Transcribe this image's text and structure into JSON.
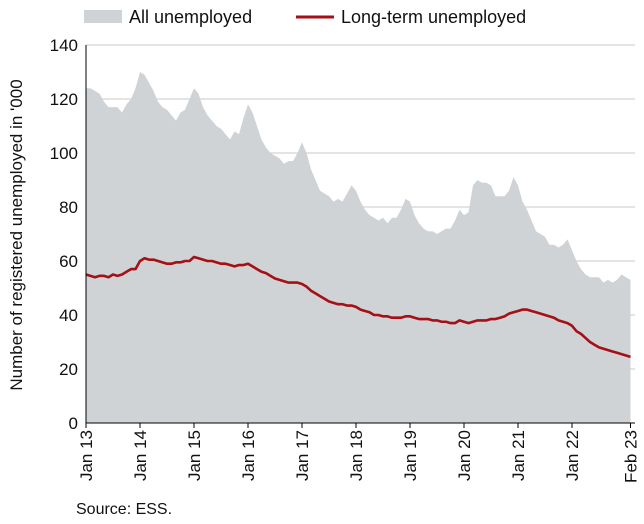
{
  "chart_data": {
    "type": "area",
    "title": "",
    "ylabel": "Number of registered unemployed in '000",
    "xlabel": "",
    "ylim": [
      0,
      140
    ],
    "yticks": [
      0,
      20,
      40,
      60,
      80,
      100,
      120,
      140
    ],
    "xticks": [
      "Jan 13",
      "Jan 14",
      "Jan 15",
      "Jan 16",
      "Jan 17",
      "Jan 18",
      "Jan 19",
      "Jan 20",
      "Jan 21",
      "Jan 22",
      "Feb 23"
    ],
    "grid": true,
    "legend_position": "top",
    "source": "Source: ESS.",
    "months_total": 122,
    "series": [
      {
        "name": "All unemployed",
        "kind": "area",
        "color": "#d0d3d6",
        "points": [
          [
            0,
            124
          ],
          [
            1,
            124
          ],
          [
            2,
            123
          ],
          [
            3,
            122
          ],
          [
            4,
            119
          ],
          [
            5,
            117
          ],
          [
            6,
            117
          ],
          [
            7,
            117
          ],
          [
            8,
            115
          ],
          [
            9,
            118
          ],
          [
            10,
            120
          ],
          [
            11,
            124
          ],
          [
            12,
            130
          ],
          [
            13,
            129
          ],
          [
            14,
            126
          ],
          [
            15,
            123
          ],
          [
            16,
            119
          ],
          [
            17,
            117
          ],
          [
            18,
            116
          ],
          [
            19,
            114
          ],
          [
            20,
            112
          ],
          [
            21,
            115
          ],
          [
            22,
            116
          ],
          [
            23,
            120
          ],
          [
            24,
            124
          ],
          [
            25,
            122
          ],
          [
            26,
            117
          ],
          [
            27,
            114
          ],
          [
            28,
            112
          ],
          [
            29,
            110
          ],
          [
            30,
            109
          ],
          [
            31,
            107
          ],
          [
            32,
            105
          ],
          [
            33,
            108
          ],
          [
            34,
            107
          ],
          [
            35,
            113
          ],
          [
            36,
            118
          ],
          [
            37,
            115
          ],
          [
            38,
            110
          ],
          [
            39,
            105
          ],
          [
            40,
            102
          ],
          [
            41,
            100
          ],
          [
            42,
            99
          ],
          [
            43,
            98
          ],
          [
            44,
            96
          ],
          [
            45,
            97
          ],
          [
            46,
            97
          ],
          [
            47,
            100
          ],
          [
            48,
            104
          ],
          [
            49,
            100
          ],
          [
            50,
            94
          ],
          [
            51,
            90
          ],
          [
            52,
            86
          ],
          [
            53,
            85
          ],
          [
            54,
            84
          ],
          [
            55,
            82
          ],
          [
            56,
            83
          ],
          [
            57,
            82
          ],
          [
            58,
            85
          ],
          [
            59,
            88
          ],
          [
            60,
            86
          ],
          [
            61,
            82
          ],
          [
            62,
            79
          ],
          [
            63,
            77
          ],
          [
            64,
            76
          ],
          [
            65,
            75
          ],
          [
            66,
            76
          ],
          [
            67,
            74
          ],
          [
            68,
            76
          ],
          [
            69,
            76
          ],
          [
            70,
            79
          ],
          [
            71,
            83
          ],
          [
            72,
            82
          ],
          [
            73,
            77
          ],
          [
            74,
            74
          ],
          [
            75,
            72
          ],
          [
            76,
            71
          ],
          [
            77,
            71
          ],
          [
            78,
            70
          ],
          [
            79,
            71
          ],
          [
            80,
            72
          ],
          [
            81,
            72
          ],
          [
            82,
            75
          ],
          [
            83,
            79
          ],
          [
            84,
            77
          ],
          [
            85,
            78
          ],
          [
            86,
            88
          ],
          [
            87,
            90
          ],
          [
            88,
            89
          ],
          [
            89,
            89
          ],
          [
            90,
            88
          ],
          [
            91,
            84
          ],
          [
            92,
            84
          ],
          [
            93,
            84
          ],
          [
            94,
            86
          ],
          [
            95,
            91
          ],
          [
            96,
            88
          ],
          [
            97,
            82
          ],
          [
            98,
            79
          ],
          [
            99,
            75
          ],
          [
            100,
            71
          ],
          [
            101,
            70
          ],
          [
            102,
            69
          ],
          [
            103,
            66
          ],
          [
            104,
            66
          ],
          [
            105,
            65
          ],
          [
            106,
            66
          ],
          [
            107,
            68
          ],
          [
            108,
            64
          ],
          [
            109,
            60
          ],
          [
            110,
            57
          ],
          [
            111,
            55
          ],
          [
            112,
            54
          ],
          [
            113,
            54
          ],
          [
            114,
            54
          ],
          [
            115,
            52
          ],
          [
            116,
            53
          ],
          [
            117,
            52
          ],
          [
            118,
            53
          ],
          [
            119,
            55
          ],
          [
            120,
            54
          ],
          [
            121,
            53
          ]
        ]
      },
      {
        "name": "Long-term unemployed",
        "kind": "line",
        "color": "#a50f15",
        "points": [
          [
            0,
            55
          ],
          [
            1,
            54.5
          ],
          [
            2,
            54
          ],
          [
            3,
            54.5
          ],
          [
            4,
            54.5
          ],
          [
            5,
            54
          ],
          [
            6,
            55
          ],
          [
            7,
            54.5
          ],
          [
            8,
            55
          ],
          [
            9,
            56
          ],
          [
            10,
            57
          ],
          [
            11,
            57
          ],
          [
            12,
            60
          ],
          [
            13,
            61
          ],
          [
            14,
            60.5
          ],
          [
            15,
            60.5
          ],
          [
            16,
            60
          ],
          [
            17,
            59.5
          ],
          [
            18,
            59
          ],
          [
            19,
            59
          ],
          [
            20,
            59.5
          ],
          [
            21,
            59.5
          ],
          [
            22,
            60
          ],
          [
            23,
            60
          ],
          [
            24,
            61.5
          ],
          [
            25,
            61
          ],
          [
            26,
            60.5
          ],
          [
            27,
            60
          ],
          [
            28,
            60
          ],
          [
            29,
            59.5
          ],
          [
            30,
            59
          ],
          [
            31,
            59
          ],
          [
            32,
            58.5
          ],
          [
            33,
            58
          ],
          [
            34,
            58.5
          ],
          [
            35,
            58.5
          ],
          [
            36,
            59
          ],
          [
            37,
            58
          ],
          [
            38,
            57
          ],
          [
            39,
            56
          ],
          [
            40,
            55.5
          ],
          [
            41,
            54.5
          ],
          [
            42,
            53.5
          ],
          [
            43,
            53
          ],
          [
            44,
            52.5
          ],
          [
            45,
            52
          ],
          [
            46,
            52
          ],
          [
            47,
            52
          ],
          [
            48,
            51.5
          ],
          [
            49,
            50.5
          ],
          [
            50,
            49
          ],
          [
            51,
            48
          ],
          [
            52,
            47
          ],
          [
            53,
            46
          ],
          [
            54,
            45
          ],
          [
            55,
            44.5
          ],
          [
            56,
            44
          ],
          [
            57,
            44
          ],
          [
            58,
            43.5
          ],
          [
            59,
            43.5
          ],
          [
            60,
            43
          ],
          [
            61,
            42
          ],
          [
            62,
            41.5
          ],
          [
            63,
            41
          ],
          [
            64,
            40
          ],
          [
            65,
            40
          ],
          [
            66,
            39.5
          ],
          [
            67,
            39.5
          ],
          [
            68,
            39
          ],
          [
            69,
            39
          ],
          [
            70,
            39
          ],
          [
            71,
            39.5
          ],
          [
            72,
            39.5
          ],
          [
            73,
            39
          ],
          [
            74,
            38.5
          ],
          [
            75,
            38.5
          ],
          [
            76,
            38.5
          ],
          [
            77,
            38
          ],
          [
            78,
            38
          ],
          [
            79,
            37.5
          ],
          [
            80,
            37.5
          ],
          [
            81,
            37
          ],
          [
            82,
            37
          ],
          [
            83,
            38
          ],
          [
            84,
            37.5
          ],
          [
            85,
            37
          ],
          [
            86,
            37.5
          ],
          [
            87,
            38
          ],
          [
            88,
            38
          ],
          [
            89,
            38
          ],
          [
            90,
            38.5
          ],
          [
            91,
            38.5
          ],
          [
            92,
            39
          ],
          [
            93,
            39.5
          ],
          [
            94,
            40.5
          ],
          [
            95,
            41
          ],
          [
            96,
            41.5
          ],
          [
            97,
            42
          ],
          [
            98,
            42
          ],
          [
            99,
            41.5
          ],
          [
            100,
            41
          ],
          [
            101,
            40.5
          ],
          [
            102,
            40
          ],
          [
            103,
            39.5
          ],
          [
            104,
            39
          ],
          [
            105,
            38
          ],
          [
            106,
            37.5
          ],
          [
            107,
            37
          ],
          [
            108,
            36
          ],
          [
            109,
            34
          ],
          [
            110,
            33
          ],
          [
            111,
            31.5
          ],
          [
            112,
            30
          ],
          [
            113,
            29
          ],
          [
            114,
            28
          ],
          [
            115,
            27.5
          ],
          [
            116,
            27
          ],
          [
            117,
            26.5
          ],
          [
            118,
            26
          ],
          [
            119,
            25.5
          ],
          [
            120,
            25
          ],
          [
            121,
            24.5
          ]
        ]
      }
    ]
  }
}
